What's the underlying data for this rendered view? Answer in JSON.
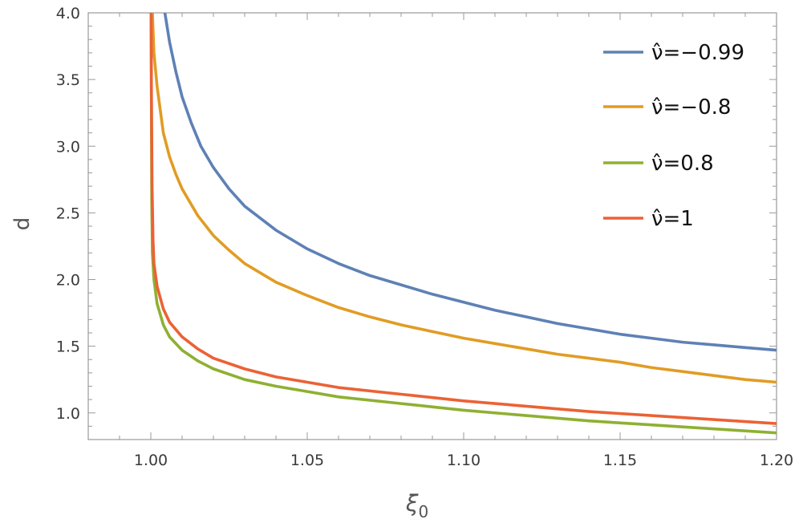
{
  "chart_data": {
    "type": "line",
    "title": "",
    "xlabel": "ξ",
    "xlabel_sub": "0",
    "ylabel": "d",
    "xlim": [
      0.98,
      1.2
    ],
    "ylim": [
      0.8,
      4.0
    ],
    "x_ticks": [
      {
        "value": 1.0,
        "label": "1.00"
      },
      {
        "value": 1.05,
        "label": "1.05"
      },
      {
        "value": 1.1,
        "label": "1.10"
      },
      {
        "value": 1.15,
        "label": "1.15"
      },
      {
        "value": 1.2,
        "label": "1.20"
      }
    ],
    "y_ticks": [
      {
        "value": 1.0,
        "label": "1.0"
      },
      {
        "value": 1.5,
        "label": "1.5"
      },
      {
        "value": 2.0,
        "label": "2.0"
      },
      {
        "value": 2.5,
        "label": "2.5"
      },
      {
        "value": 3.0,
        "label": "3.0"
      },
      {
        "value": 3.5,
        "label": "3.5"
      },
      {
        "value": 4.0,
        "label": "4.0"
      }
    ],
    "grid": false,
    "legend_position": "top-right",
    "series": [
      {
        "name": "ν̂=−0.99",
        "color": "#5e81b5",
        "points": [
          [
            1.0045,
            4.0
          ],
          [
            1.006,
            3.78
          ],
          [
            1.008,
            3.56
          ],
          [
            1.01,
            3.37
          ],
          [
            1.013,
            3.17
          ],
          [
            1.016,
            3.0
          ],
          [
            1.02,
            2.84
          ],
          [
            1.025,
            2.68
          ],
          [
            1.03,
            2.55
          ],
          [
            1.04,
            2.37
          ],
          [
            1.05,
            2.23
          ],
          [
            1.06,
            2.12
          ],
          [
            1.07,
            2.03
          ],
          [
            1.08,
            1.96
          ],
          [
            1.09,
            1.89
          ],
          [
            1.1,
            1.83
          ],
          [
            1.11,
            1.77
          ],
          [
            1.12,
            1.72
          ],
          [
            1.13,
            1.67
          ],
          [
            1.14,
            1.63
          ],
          [
            1.15,
            1.59
          ],
          [
            1.16,
            1.56
          ],
          [
            1.17,
            1.53
          ],
          [
            1.18,
            1.51
          ],
          [
            1.19,
            1.49
          ],
          [
            1.2,
            1.47
          ]
        ]
      },
      {
        "name": "ν̂=−0.8",
        "color": "#e19c24",
        "points": [
          [
            1.0005,
            4.0
          ],
          [
            1.001,
            3.7
          ],
          [
            1.002,
            3.45
          ],
          [
            1.004,
            3.1
          ],
          [
            1.006,
            2.92
          ],
          [
            1.008,
            2.79
          ],
          [
            1.01,
            2.68
          ],
          [
            1.015,
            2.48
          ],
          [
            1.02,
            2.33
          ],
          [
            1.025,
            2.22
          ],
          [
            1.03,
            2.12
          ],
          [
            1.04,
            1.98
          ],
          [
            1.05,
            1.88
          ],
          [
            1.06,
            1.79
          ],
          [
            1.07,
            1.72
          ],
          [
            1.08,
            1.66
          ],
          [
            1.09,
            1.61
          ],
          [
            1.1,
            1.56
          ],
          [
            1.11,
            1.52
          ],
          [
            1.12,
            1.48
          ],
          [
            1.13,
            1.44
          ],
          [
            1.14,
            1.41
          ],
          [
            1.15,
            1.38
          ],
          [
            1.16,
            1.34
          ],
          [
            1.17,
            1.31
          ],
          [
            1.18,
            1.28
          ],
          [
            1.19,
            1.25
          ],
          [
            1.2,
            1.23
          ]
        ]
      },
      {
        "name": "ν̂=0.8",
        "color": "#8fb032",
        "points": [
          [
            1.0001,
            4.0
          ],
          [
            1.0002,
            3.2
          ],
          [
            1.0003,
            2.6
          ],
          [
            1.0005,
            2.2
          ],
          [
            1.001,
            2.0
          ],
          [
            1.002,
            1.82
          ],
          [
            1.004,
            1.66
          ],
          [
            1.006,
            1.57
          ],
          [
            1.01,
            1.47
          ],
          [
            1.015,
            1.39
          ],
          [
            1.02,
            1.33
          ],
          [
            1.03,
            1.25
          ],
          [
            1.04,
            1.2
          ],
          [
            1.05,
            1.16
          ],
          [
            1.06,
            1.12
          ],
          [
            1.08,
            1.07
          ],
          [
            1.1,
            1.02
          ],
          [
            1.12,
            0.98
          ],
          [
            1.14,
            0.94
          ],
          [
            1.16,
            0.91
          ],
          [
            1.18,
            0.88
          ],
          [
            1.2,
            0.85
          ]
        ]
      },
      {
        "name": "ν̂=1",
        "color": "#eb6235",
        "points": [
          [
            1.0001,
            4.0
          ],
          [
            1.0002,
            3.4
          ],
          [
            1.0004,
            2.7
          ],
          [
            1.0007,
            2.3
          ],
          [
            1.001,
            2.12
          ],
          [
            1.002,
            1.95
          ],
          [
            1.004,
            1.78
          ],
          [
            1.006,
            1.68
          ],
          [
            1.01,
            1.57
          ],
          [
            1.015,
            1.48
          ],
          [
            1.02,
            1.41
          ],
          [
            1.03,
            1.33
          ],
          [
            1.04,
            1.27
          ],
          [
            1.05,
            1.23
          ],
          [
            1.06,
            1.19
          ],
          [
            1.08,
            1.14
          ],
          [
            1.1,
            1.09
          ],
          [
            1.12,
            1.05
          ],
          [
            1.14,
            1.01
          ],
          [
            1.16,
            0.98
          ],
          [
            1.18,
            0.95
          ],
          [
            1.2,
            0.92
          ]
        ]
      }
    ]
  }
}
